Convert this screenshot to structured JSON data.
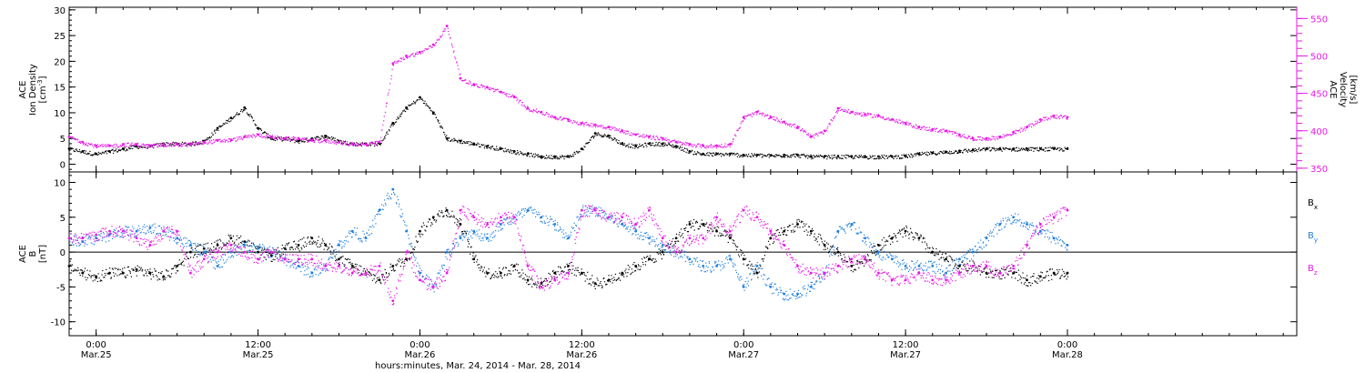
{
  "chart_data": [
    {
      "type": "scatter",
      "panel": "top",
      "xlabel": "hours:minutes, Mar. 24, 2014 - Mar. 28, 2014",
      "x_unit": "hours since Mar.24 00:00",
      "xlim": [
        22,
        113
      ],
      "x_ticks": [
        {
          "hour": 24,
          "time": "0:00",
          "date": "Mar.25"
        },
        {
          "hour": 36,
          "time": "12:00",
          "date": "Mar.25"
        },
        {
          "hour": 48,
          "time": "0:00",
          "date": "Mar.26"
        },
        {
          "hour": 60,
          "time": "12:00",
          "date": "Mar.26"
        },
        {
          "hour": 72,
          "time": "0:00",
          "date": "Mar.27"
        },
        {
          "hour": 84,
          "time": "12:00",
          "date": "Mar.27"
        },
        {
          "hour": 96,
          "time": "0:00",
          "date": "Mar.28"
        }
      ],
      "left_axis": {
        "ylabel_lines": [
          "ACE",
          "Ion Density",
          "[cm^-3]"
        ],
        "ylim": [
          -1.5,
          30.5
        ],
        "ticks": [
          0,
          5,
          10,
          15,
          20,
          25,
          30
        ]
      },
      "right_axis": {
        "ylabel_lines": [
          "ACE",
          "Velocity",
          "[km/s]"
        ],
        "ylim": [
          345,
          565
        ],
        "ticks": [
          350,
          400,
          450,
          500,
          550
        ]
      },
      "series": [
        {
          "name": "Ion Density",
          "axis": "left",
          "color": "#000000",
          "x": [
            22,
            23,
            24,
            25,
            26,
            27,
            28,
            29,
            30,
            31,
            32,
            33,
            34,
            35,
            36,
            37,
            38,
            39,
            40,
            41,
            42,
            43,
            44,
            45,
            46,
            47,
            48,
            49,
            50,
            51,
            52,
            53,
            54,
            55,
            56,
            57,
            58,
            59,
            60,
            61,
            62,
            63,
            64,
            65,
            66,
            67,
            68,
            69,
            70,
            71,
            72,
            73,
            74,
            75,
            76,
            77,
            78,
            79,
            80,
            81,
            82,
            83,
            84,
            85,
            86,
            87,
            88,
            89,
            90,
            91,
            92,
            93,
            94,
            95,
            96
          ],
          "y": [
            3,
            2.5,
            2,
            2.5,
            3,
            3.5,
            3.5,
            4,
            4,
            4,
            4.5,
            7,
            9,
            11,
            7,
            5,
            5,
            4.5,
            5,
            5.5,
            4.5,
            4,
            4,
            4,
            8,
            11,
            13,
            10,
            5,
            4.5,
            4,
            3.5,
            3,
            2.5,
            2,
            1.5,
            1.5,
            1.5,
            3,
            6,
            5.5,
            4,
            3.5,
            4,
            4,
            3.5,
            2.5,
            2,
            2,
            2,
            1.8,
            1.8,
            1.7,
            1.8,
            1.8,
            1.5,
            1.5,
            1.5,
            1.5,
            1.5,
            1.5,
            1.5,
            1.6,
            2,
            2.2,
            2.4,
            2.6,
            2.8,
            3,
            3,
            3,
            3,
            3,
            3,
            3
          ]
        },
        {
          "name": "Velocity",
          "axis": "right",
          "color": "#e619e6",
          "x": [
            22,
            23,
            24,
            25,
            26,
            27,
            28,
            29,
            30,
            31,
            32,
            33,
            34,
            35,
            36,
            37,
            38,
            39,
            40,
            41,
            42,
            43,
            44,
            45,
            46,
            47,
            48,
            49,
            50,
            51,
            52,
            53,
            54,
            55,
            56,
            57,
            58,
            59,
            60,
            61,
            62,
            63,
            64,
            65,
            66,
            67,
            68,
            69,
            70,
            71,
            72,
            73,
            74,
            75,
            76,
            77,
            78,
            79,
            80,
            81,
            82,
            83,
            84,
            85,
            86,
            87,
            88,
            89,
            90,
            91,
            92,
            93,
            94,
            95,
            96
          ],
          "y": [
            392,
            385,
            380,
            380,
            382,
            382,
            380,
            382,
            382,
            382,
            385,
            387,
            388,
            392,
            395,
            392,
            390,
            390,
            387,
            387,
            385,
            383,
            382,
            385,
            490,
            500,
            505,
            515,
            540,
            470,
            462,
            458,
            452,
            445,
            430,
            425,
            418,
            415,
            410,
            408,
            405,
            400,
            395,
            392,
            390,
            385,
            382,
            380,
            380,
            382,
            418,
            425,
            418,
            412,
            405,
            392,
            400,
            430,
            425,
            422,
            420,
            415,
            410,
            405,
            402,
            400,
            395,
            390,
            390,
            392,
            398,
            405,
            415,
            420,
            418
          ]
        }
      ]
    },
    {
      "type": "scatter",
      "panel": "bottom",
      "xlim": [
        22,
        113
      ],
      "left_axis": {
        "ylabel_lines": [
          "ACE",
          "B",
          "[nT]"
        ],
        "ylim": [
          -12,
          11.5
        ],
        "ticks": [
          -10,
          -5,
          0,
          5,
          10
        ]
      },
      "series": [
        {
          "name": "Bx",
          "legend": {
            "base": "B",
            "sub": "x"
          },
          "color": "#000000",
          "x": [
            22,
            23,
            24,
            25,
            26,
            27,
            28,
            29,
            30,
            31,
            32,
            33,
            34,
            35,
            36,
            37,
            38,
            39,
            40,
            41,
            42,
            43,
            44,
            45,
            46,
            47,
            48,
            49,
            50,
            51,
            52,
            53,
            54,
            55,
            56,
            57,
            58,
            59,
            60,
            61,
            62,
            63,
            64,
            65,
            66,
            67,
            68,
            69,
            70,
            71,
            72,
            73,
            74,
            75,
            76,
            77,
            78,
            79,
            80,
            81,
            82,
            83,
            84,
            85,
            86,
            87,
            88,
            89,
            90,
            91,
            92,
            93,
            94,
            95,
            96
          ],
          "y": [
            -2,
            -3,
            -3.5,
            -3,
            -3,
            -2.5,
            -3,
            -3.5,
            -2,
            0,
            0.5,
            1,
            2,
            1.5,
            0,
            -0.5,
            0.5,
            1,
            2,
            1,
            -1,
            -2,
            -3,
            -4,
            -2,
            -1,
            3,
            5,
            6,
            4,
            -1,
            -3,
            -3,
            -2,
            -4,
            -4.5,
            -3,
            -2,
            -3,
            -4.5,
            -4,
            -3,
            -2,
            -1,
            0,
            2,
            4,
            4,
            3,
            2,
            -1,
            -3,
            2,
            3,
            4,
            3,
            1,
            0,
            -2,
            -1,
            1,
            2,
            3,
            2,
            0,
            -1,
            -2,
            -2,
            -3,
            -3,
            -3,
            -4,
            -3.5,
            -3,
            -3
          ]
        },
        {
          "name": "By",
          "legend": {
            "base": "B",
            "sub": "y"
          },
          "color": "#1f7fdc",
          "x": [
            22,
            23,
            24,
            25,
            26,
            27,
            28,
            29,
            30,
            31,
            32,
            33,
            34,
            35,
            36,
            37,
            38,
            39,
            40,
            41,
            42,
            43,
            44,
            45,
            46,
            47,
            48,
            49,
            50,
            51,
            52,
            53,
            54,
            55,
            56,
            57,
            58,
            59,
            60,
            61,
            62,
            63,
            64,
            65,
            66,
            67,
            68,
            69,
            70,
            71,
            72,
            73,
            74,
            75,
            76,
            77,
            78,
            79,
            80,
            81,
            82,
            83,
            84,
            85,
            86,
            87,
            88,
            89,
            90,
            91,
            92,
            93,
            94,
            95,
            96
          ],
          "y": [
            2,
            1.5,
            2,
            2.5,
            3,
            3,
            3.5,
            3,
            2,
            1,
            0,
            -2,
            0,
            1,
            0.5,
            0,
            -1,
            -2,
            -3,
            -2,
            1,
            3,
            2,
            6,
            9,
            3,
            -3,
            -5,
            0,
            2,
            3,
            2,
            4,
            5,
            6,
            5,
            4,
            2,
            6,
            6,
            5,
            4,
            3,
            2,
            1,
            0,
            -1,
            -2,
            -2,
            -1,
            -5,
            -2,
            -5,
            -6,
            -6,
            -5,
            -3,
            3,
            4,
            2,
            0,
            -1,
            -2,
            -2,
            -2,
            -3,
            -1,
            0,
            2,
            4,
            5,
            4,
            3,
            2,
            1
          ]
        },
        {
          "name": "Bz",
          "legend": {
            "base": "B",
            "sub": "z"
          },
          "color": "#e619e6",
          "x": [
            22,
            23,
            24,
            25,
            26,
            27,
            28,
            29,
            30,
            31,
            32,
            33,
            34,
            35,
            36,
            37,
            38,
            39,
            40,
            41,
            42,
            43,
            44,
            45,
            46,
            47,
            48,
            49,
            50,
            51,
            52,
            53,
            54,
            55,
            56,
            57,
            58,
            59,
            60,
            61,
            62,
            63,
            64,
            65,
            66,
            67,
            68,
            69,
            70,
            71,
            72,
            73,
            74,
            75,
            76,
            77,
            78,
            79,
            80,
            81,
            82,
            83,
            84,
            85,
            86,
            87,
            88,
            89,
            90,
            91,
            92,
            93,
            94,
            95,
            96
          ],
          "y": [
            2,
            2,
            2.5,
            3,
            3,
            2,
            1,
            3,
            3,
            -3,
            -1,
            0,
            1,
            0,
            -1,
            0,
            -1,
            -1,
            -1,
            -2,
            -2,
            -3,
            -3,
            -2,
            -7,
            0,
            -4,
            -5,
            -3,
            6,
            5,
            4,
            5,
            5,
            -2,
            -5,
            -4,
            -3,
            6,
            6,
            5,
            5,
            4,
            6,
            2,
            0,
            2,
            2,
            5,
            3,
            6,
            5,
            3,
            1,
            -2,
            -3,
            -3,
            -2,
            -1,
            -1,
            -3,
            -4,
            -4,
            -3,
            -4,
            -4,
            -3,
            -2,
            -2,
            -3,
            -2,
            1,
            4,
            5,
            6
          ]
        }
      ]
    }
  ]
}
